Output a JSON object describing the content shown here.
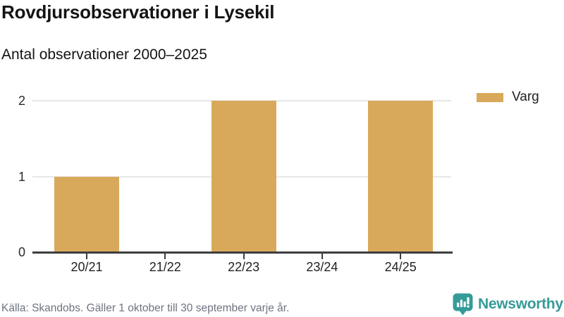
{
  "header": {
    "title": "Rovdjursobservationer i Lysekil",
    "subtitle": "Antal observationer 2000–2025"
  },
  "chart_data": {
    "type": "bar",
    "title": "Rovdjursobservationer i Lysekil",
    "subtitle": "Antal observationer 2000–2025",
    "categories": [
      "20/21",
      "21/22",
      "22/23",
      "23/24",
      "24/25"
    ],
    "series": [
      {
        "name": "Varg",
        "color": "#D9A95B",
        "values": [
          1,
          0,
          2,
          0,
          2
        ]
      }
    ],
    "xlabel": "",
    "ylabel": "",
    "ylim": [
      0,
      2
    ],
    "yticks": [
      0,
      1,
      2
    ],
    "grid": true,
    "legend_position": "top-right"
  },
  "footer": {
    "source": "Källa: Skandobs. Gäller 1 oktober till 30 september varje år.",
    "logo_text": "Newsworthy"
  },
  "colors": {
    "bar": "#D9A95B",
    "axis": "#3d3d3d",
    "gridline": "#e7e7e7",
    "title_text": "#141414",
    "source_text": "#6e7380",
    "brand_teal": "#359b98",
    "background": "#ffffff"
  }
}
